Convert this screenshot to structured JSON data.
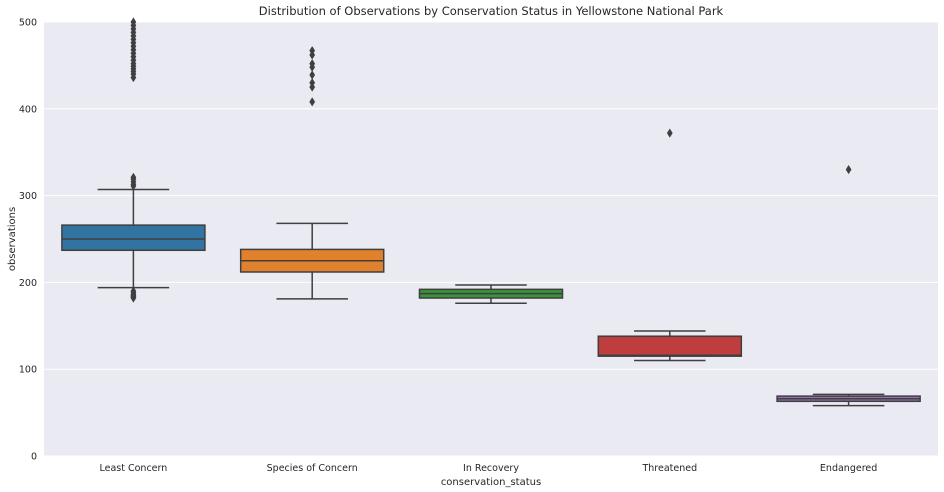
{
  "chart_data": {
    "type": "box",
    "title": "Distribution of Observations by Conservation Status in Yellowstone National Park",
    "xlabel": "conservation_status",
    "ylabel": "observations",
    "ylim": [
      0,
      500
    ],
    "yticks": [
      0,
      100,
      200,
      300,
      400,
      500
    ],
    "grid": true,
    "background": "#eaeaf2",
    "categories": [
      "Least Concern",
      "Species of Concern",
      "In Recovery",
      "Threatened",
      "Endangered"
    ],
    "boxes": [
      {
        "category": "Least Concern",
        "color": "#3274a1",
        "whisker_low": 194,
        "q1": 237,
        "median": 250,
        "q3": 266,
        "whisker_high": 307,
        "outliers": [
          182,
          183,
          184,
          185,
          186,
          188,
          190,
          311,
          313,
          316,
          319,
          321,
          436,
          440,
          443,
          446,
          449,
          452,
          456,
          460,
          464,
          468,
          472,
          476,
          480,
          484,
          488,
          492,
          496,
          500
        ]
      },
      {
        "category": "Species of Concern",
        "color": "#e1812c",
        "whisker_low": 181,
        "q1": 212,
        "median": 225,
        "q3": 238,
        "whisker_high": 268,
        "outliers": [
          408,
          425,
          430,
          439,
          448,
          452,
          462,
          467
        ]
      },
      {
        "category": "In Recovery",
        "color": "#3a923a",
        "whisker_low": 176,
        "q1": 182,
        "median": 187,
        "q3": 192,
        "whisker_high": 197,
        "outliers": []
      },
      {
        "category": "Threatened",
        "color": "#c03d3e",
        "whisker_low": 110,
        "q1": 115,
        "median": 116,
        "q3": 138,
        "whisker_high": 144,
        "outliers": [
          372
        ]
      },
      {
        "category": "Endangered",
        "color": "#9372b2",
        "whisker_low": 58,
        "q1": 63,
        "median": 66,
        "q3": 69,
        "whisker_high": 71,
        "outliers": [
          330
        ]
      }
    ]
  }
}
